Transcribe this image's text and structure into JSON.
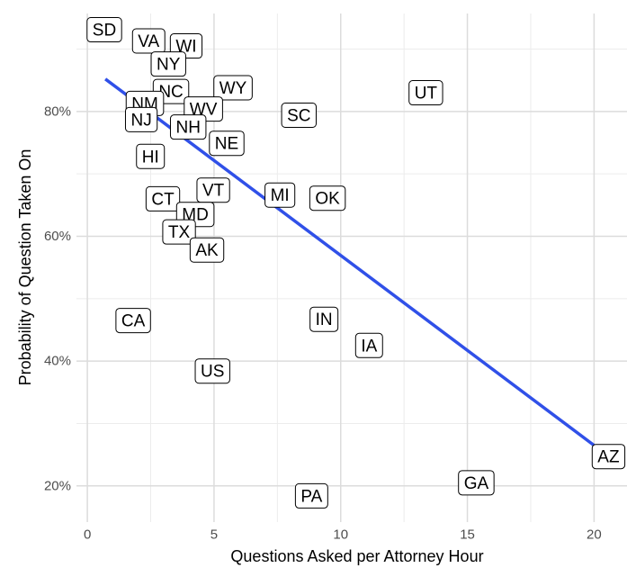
{
  "chart_data": {
    "type": "scatter",
    "x_label": "Questions Asked per Attorney Hour",
    "y_label": "Probability of Question Taken On",
    "xlim": [
      -0.43,
      21.3
    ],
    "ylim": [
      14.2,
      95.7
    ],
    "xticks": [
      0,
      5,
      10,
      15,
      20
    ],
    "yticks": [
      {
        "value": 20,
        "label": "20%"
      },
      {
        "value": 40,
        "label": "40%"
      },
      {
        "value": 60,
        "label": "60%"
      },
      {
        "value": 80,
        "label": "80%"
      }
    ],
    "minor_xticks": [
      2.5,
      7.5,
      12.5,
      17.5
    ],
    "minor_yticks": [
      30,
      50,
      70,
      90
    ],
    "grid": true,
    "points": [
      {
        "label": "SD",
        "x": 0.67,
        "y": 93.1
      },
      {
        "label": "VA",
        "x": 2.42,
        "y": 91.3
      },
      {
        "label": "WI",
        "x": 3.9,
        "y": 90.5
      },
      {
        "label": "NY",
        "x": 3.2,
        "y": 87.6
      },
      {
        "label": "NC",
        "x": 3.3,
        "y": 83.2
      },
      {
        "label": "WY",
        "x": 5.75,
        "y": 83.8
      },
      {
        "label": "NM",
        "x": 2.27,
        "y": 81.3
      },
      {
        "label": "NJ",
        "x": 2.13,
        "y": 78.7
      },
      {
        "label": "WV",
        "x": 4.58,
        "y": 80.4
      },
      {
        "label": "NH",
        "x": 3.98,
        "y": 77.5
      },
      {
        "label": "SC",
        "x": 8.35,
        "y": 79.4
      },
      {
        "label": "NE",
        "x": 5.5,
        "y": 74.9
      },
      {
        "label": "HI",
        "x": 2.49,
        "y": 72.8
      },
      {
        "label": "UT",
        "x": 13.36,
        "y": 83.0
      },
      {
        "label": "CT",
        "x": 2.98,
        "y": 66.0
      },
      {
        "label": "VT",
        "x": 4.97,
        "y": 67.4
      },
      {
        "label": "MI",
        "x": 7.6,
        "y": 66.6
      },
      {
        "label": "OK",
        "x": 9.48,
        "y": 66.1
      },
      {
        "label": "MD",
        "x": 4.26,
        "y": 63.5
      },
      {
        "label": "TX",
        "x": 3.62,
        "y": 60.7
      },
      {
        "label": "AK",
        "x": 4.72,
        "y": 57.8
      },
      {
        "label": "CA",
        "x": 1.81,
        "y": 46.5
      },
      {
        "label": "IN",
        "x": 9.34,
        "y": 46.7
      },
      {
        "label": "IA",
        "x": 11.12,
        "y": 42.5
      },
      {
        "label": "US",
        "x": 4.94,
        "y": 38.4
      },
      {
        "label": "AZ",
        "x": 20.57,
        "y": 24.7
      },
      {
        "label": "GA",
        "x": 15.35,
        "y": 20.5
      },
      {
        "label": "PA",
        "x": 8.85,
        "y": 18.4
      }
    ],
    "trend_line": {
      "color": "#3050e8",
      "x": [
        0.71,
        20
      ],
      "y": [
        85.2,
        26.5
      ]
    }
  }
}
